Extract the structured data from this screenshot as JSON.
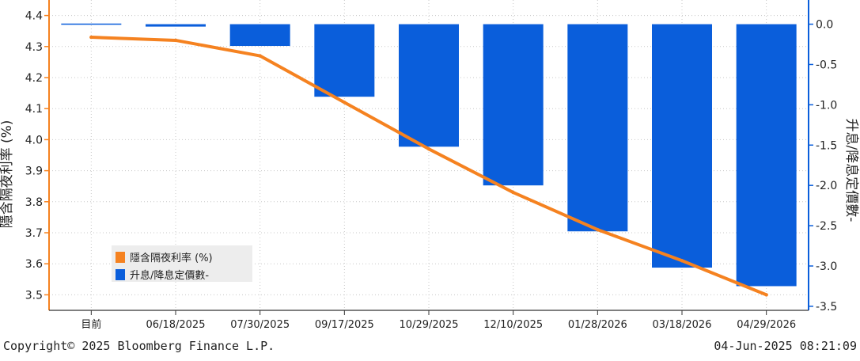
{
  "chart_data": {
    "type": "bar",
    "categories": [
      "目前",
      "06/18/2025",
      "07/30/2025",
      "09/17/2025",
      "10/29/2025",
      "12/10/2025",
      "01/28/2026",
      "03/18/2026",
      "04/29/2026"
    ],
    "series": [
      {
        "name": "隱含隔夜利率 (%)",
        "type": "line",
        "axis": "left",
        "color": "#F58220",
        "values": [
          4.33,
          4.32,
          4.27,
          4.12,
          3.97,
          3.83,
          3.71,
          3.61,
          3.5
        ]
      },
      {
        "name": "升息/降息定價數-",
        "type": "bar",
        "axis": "right",
        "color": "#0A5EDB",
        "values": [
          0.0,
          -0.03,
          -0.27,
          -0.9,
          -1.52,
          -2.0,
          -2.57,
          -3.02,
          -3.25
        ]
      }
    ],
    "y_left": {
      "label": "隱含隔夜利率 (%)",
      "ticks": [
        "3.5",
        "3.6",
        "3.7",
        "3.8",
        "3.9",
        "4.0",
        "4.1",
        "4.2",
        "4.3",
        "4.4"
      ],
      "range": [
        3.45,
        4.45
      ]
    },
    "y_right": {
      "label": "升息/降息定價數-",
      "ticks": [
        "0.0",
        "-0.5",
        "-1.0",
        "-1.5",
        "-2.0",
        "-2.5",
        "-3.0",
        "-3.5"
      ],
      "range": [
        -3.55,
        0.3
      ]
    },
    "grid": true,
    "legend": {
      "position": "bottom-left",
      "entries": [
        "隱含隔夜利率 (%)",
        "升息/降息定價數-"
      ]
    }
  },
  "footer": {
    "copyright": "Copyright© 2025 Bloomberg Finance L.P.",
    "timestamp": "04-Jun-2025 08:21:09"
  }
}
